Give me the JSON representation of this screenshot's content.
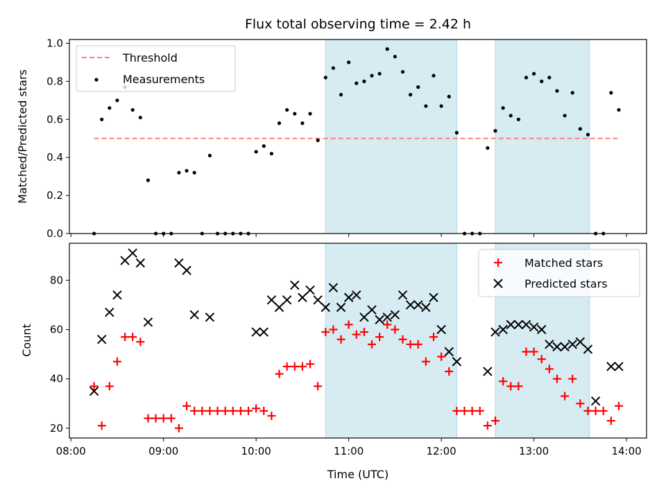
{
  "chart_data": [
    {
      "type": "scatter",
      "title": "Flux total observing time = 2.42 h",
      "xlabel": "",
      "ylabel": "Matched/Predicted stars",
      "xlim": [
        "07:59",
        "14:13"
      ],
      "ylim": [
        0,
        1.02
      ],
      "yticks": [
        0.0,
        0.2,
        0.4,
        0.6,
        0.8,
        1.0
      ],
      "ytick_labels": [
        "0.0",
        "0.2",
        "0.4",
        "0.6",
        "0.8",
        "1.0"
      ],
      "xticks": [
        "08:00",
        "09:00",
        "10:00",
        "11:00",
        "12:00",
        "13:00",
        "14:00"
      ],
      "shaded_intervals": [
        [
          "10:45",
          "12:10"
        ],
        [
          "12:35",
          "13:36"
        ]
      ],
      "shade_color": "#add8e6",
      "legend": {
        "placement": "upper-left",
        "entries": [
          "Threshold",
          "Measurements"
        ]
      },
      "threshold": {
        "name": "Threshold",
        "value": 0.5,
        "x_range": [
          "08:15",
          "13:55"
        ],
        "color": "#ff7f7f"
      },
      "series": [
        {
          "name": "Measurements",
          "color": "#000000",
          "x": [
            "08:15",
            "08:20",
            "08:25",
            "08:30",
            "08:35",
            "08:40",
            "08:45",
            "08:50",
            "08:55",
            "09:00",
            "09:05",
            "09:10",
            "09:15",
            "09:20",
            "09:25",
            "09:30",
            "09:35",
            "09:40",
            "09:45",
            "09:50",
            "09:55",
            "10:00",
            "10:05",
            "10:10",
            "10:15",
            "10:20",
            "10:25",
            "10:30",
            "10:35",
            "10:40",
            "10:45",
            "10:50",
            "10:55",
            "11:00",
            "11:05",
            "11:10",
            "11:15",
            "11:20",
            "11:25",
            "11:30",
            "11:35",
            "11:40",
            "11:45",
            "11:50",
            "11:55",
            "12:00",
            "12:05",
            "12:10",
            "12:15",
            "12:20",
            "12:25",
            "12:30",
            "12:35",
            "12:40",
            "12:45",
            "12:50",
            "12:55",
            "13:00",
            "13:05",
            "13:10",
            "13:15",
            "13:20",
            "13:25",
            "13:30",
            "13:35",
            "13:40",
            "13:45",
            "13:50",
            "13:55"
          ],
          "values": [
            0.0,
            0.6,
            0.66,
            0.7,
            0.77,
            0.65,
            0.61,
            0.28,
            0.0,
            0.0,
            0.0,
            0.32,
            0.33,
            0.32,
            0.0,
            0.41,
            0.0,
            0.0,
            0.0,
            0.0,
            0.0,
            0.43,
            0.46,
            0.42,
            0.58,
            0.65,
            0.63,
            0.58,
            0.63,
            0.49,
            0.82,
            0.87,
            0.73,
            0.9,
            0.79,
            0.8,
            0.83,
            0.84,
            0.97,
            0.93,
            0.85,
            0.73,
            0.77,
            0.67,
            0.83,
            0.67,
            0.72,
            0.53,
            0.0,
            0.0,
            0.0,
            0.45,
            0.54,
            0.66,
            0.62,
            0.6,
            0.82,
            0.84,
            0.8,
            0.82,
            0.75,
            0.62,
            0.74,
            0.55,
            0.52,
            0.0,
            0.0,
            0.74,
            0.65
          ]
        }
      ]
    },
    {
      "type": "scatter",
      "title": "",
      "xlabel": "Time (UTC)",
      "ylabel": "Count",
      "xlim": [
        "07:59",
        "14:13"
      ],
      "ylim": [
        16,
        95
      ],
      "yticks": [
        20,
        40,
        60,
        80
      ],
      "ytick_labels": [
        "20",
        "40",
        "60",
        "80"
      ],
      "xticks": [
        "08:00",
        "09:00",
        "10:00",
        "11:00",
        "12:00",
        "13:00",
        "14:00"
      ],
      "xtick_labels": [
        "08:00",
        "09:00",
        "10:00",
        "11:00",
        "12:00",
        "13:00",
        "14:00"
      ],
      "shaded_intervals": [
        [
          "10:45",
          "12:10"
        ],
        [
          "12:35",
          "13:36"
        ]
      ],
      "shade_color": "#add8e6",
      "legend": {
        "placement": "upper-right",
        "entries": [
          "Matched stars",
          "Predicted stars"
        ]
      },
      "series": [
        {
          "name": "Matched stars",
          "marker": "+",
          "color": "#ff0000",
          "x": [
            "08:15",
            "08:20",
            "08:25",
            "08:30",
            "08:35",
            "08:40",
            "08:45",
            "08:50",
            "08:55",
            "09:00",
            "09:05",
            "09:10",
            "09:15",
            "09:20",
            "09:25",
            "09:30",
            "09:35",
            "09:40",
            "09:45",
            "09:50",
            "09:55",
            "10:00",
            "10:05",
            "10:10",
            "10:15",
            "10:20",
            "10:25",
            "10:30",
            "10:35",
            "10:40",
            "10:45",
            "10:50",
            "10:55",
            "11:00",
            "11:05",
            "11:10",
            "11:15",
            "11:20",
            "11:25",
            "11:30",
            "11:35",
            "11:40",
            "11:45",
            "11:50",
            "11:55",
            "12:00",
            "12:05",
            "12:10",
            "12:15",
            "12:20",
            "12:25",
            "12:30",
            "12:35",
            "12:40",
            "12:45",
            "12:50",
            "12:55",
            "13:00",
            "13:05",
            "13:10",
            "13:15",
            "13:20",
            "13:25",
            "13:30",
            "13:35",
            "13:40",
            "13:45",
            "13:50",
            "13:55"
          ],
          "values": [
            37,
            21,
            37,
            47,
            57,
            57,
            55,
            24,
            24,
            24,
            24,
            20,
            29,
            27,
            27,
            27,
            27,
            27,
            27,
            27,
            27,
            28,
            27,
            25,
            42,
            45,
            45,
            45,
            46,
            37,
            59,
            60,
            56,
            62,
            58,
            59,
            54,
            57,
            62,
            60,
            56,
            54,
            54,
            47,
            57,
            49,
            43,
            27,
            27,
            27,
            27,
            21,
            23,
            39,
            37,
            37,
            51,
            51,
            48,
            44,
            40,
            33,
            40,
            30,
            27,
            27,
            27,
            23,
            29
          ]
        },
        {
          "name": "Predicted stars",
          "marker": "x",
          "color": "#000000",
          "x": [
            "08:15",
            "08:20",
            "08:25",
            "08:30",
            "08:35",
            "08:40",
            "08:45",
            "08:50",
            "09:10",
            "09:15",
            "09:20",
            "09:30",
            "10:00",
            "10:05",
            "10:10",
            "10:15",
            "10:20",
            "10:25",
            "10:30",
            "10:35",
            "10:40",
            "10:45",
            "10:50",
            "10:55",
            "11:00",
            "11:05",
            "11:10",
            "11:15",
            "11:20",
            "11:25",
            "11:30",
            "11:35",
            "11:40",
            "11:45",
            "11:50",
            "11:55",
            "12:00",
            "12:05",
            "12:10",
            "12:30",
            "12:35",
            "12:40",
            "12:45",
            "12:50",
            "12:55",
            "13:00",
            "13:05",
            "13:10",
            "13:15",
            "13:20",
            "13:25",
            "13:30",
            "13:35",
            "13:40",
            "13:50",
            "13:55"
          ],
          "values": [
            35,
            56,
            67,
            74,
            88,
            91,
            87,
            63,
            87,
            84,
            66,
            65,
            59,
            59,
            72,
            69,
            72,
            78,
            73,
            76,
            72,
            69,
            77,
            69,
            73,
            74,
            65,
            68,
            64,
            65,
            66,
            74,
            70,
            70,
            69,
            73,
            60,
            51,
            47,
            43,
            59,
            60,
            62,
            62,
            62,
            61,
            60,
            54,
            53,
            53,
            54,
            55,
            52,
            31,
            45,
            45
          ]
        }
      ]
    }
  ]
}
